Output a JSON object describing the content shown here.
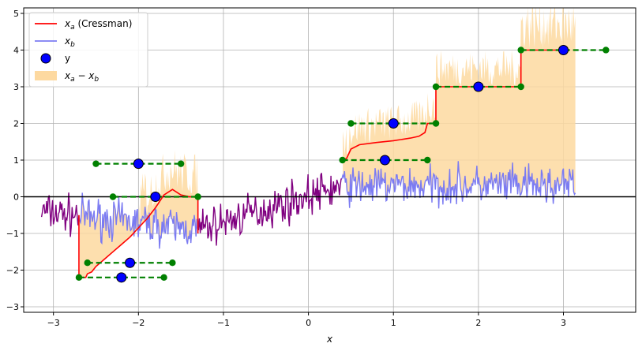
{
  "chart_data": {
    "type": "line",
    "title": "",
    "xlabel": "x",
    "ylabel": "",
    "xlim": [
      -3.35,
      3.85
    ],
    "ylim": [
      -3.15,
      5.15
    ],
    "xticks": [
      -3,
      -2,
      -1,
      0,
      1,
      2,
      3
    ],
    "yticks": [
      -3,
      -2,
      -1,
      0,
      1,
      2,
      3,
      4,
      5
    ],
    "xtick_labels": [
      "−3",
      "−2",
      "−1",
      "0",
      "1",
      "2",
      "3"
    ],
    "ytick_labels": [
      "−3",
      "−2",
      "−1",
      "0",
      "1",
      "2",
      "3",
      "4",
      "5"
    ],
    "grid": true,
    "legend_position": "top-left",
    "legend": [
      {
        "label_main": "x",
        "label_sub": "a",
        "label_suffix": " (Cressman)",
        "kind": "line",
        "color": "#ff0000"
      },
      {
        "label_main": "x",
        "label_sub": "b",
        "label_suffix": "",
        "kind": "line",
        "color": "#7b7bf2"
      },
      {
        "label_main": "y",
        "label_sub": "",
        "label_suffix": "",
        "kind": "marker",
        "color": "#0000ff"
      },
      {
        "label_main": "x",
        "label_sub": "a",
        "label_suffix": " − x",
        "label_sub2": "b",
        "kind": "patch",
        "color": "#fdd9a0"
      }
    ],
    "observations_y": [
      {
        "x": -2.2,
        "y": -2.2
      },
      {
        "x": -2.1,
        "y": -1.8
      },
      {
        "x": -2.0,
        "y": 0.9
      },
      {
        "x": -1.8,
        "y": 0.0
      },
      {
        "x": 0.9,
        "y": 1.0
      },
      {
        "x": 1.0,
        "y": 2.0
      },
      {
        "x": 2.0,
        "y": 3.0
      },
      {
        "x": 3.0,
        "y": 4.0
      }
    ],
    "influence_segments": [
      {
        "x0": -2.7,
        "x1": -1.7,
        "y": -2.2
      },
      {
        "x0": -2.6,
        "x1": -1.6,
        "y": -1.8
      },
      {
        "x0": -2.5,
        "x1": -1.5,
        "y": 0.9
      },
      {
        "x0": -2.3,
        "x1": -1.3,
        "y": 0.0
      },
      {
        "x0": 0.4,
        "x1": 1.4,
        "y": 1.0
      },
      {
        "x0": 0.5,
        "x1": 1.5,
        "y": 2.0
      },
      {
        "x0": 1.5,
        "x1": 2.5,
        "y": 3.0
      },
      {
        "x0": 2.5,
        "x1": 3.5,
        "y": 4.0
      }
    ],
    "analysis_xa": [
      {
        "x": -2.7,
        "y": -2.2
      },
      {
        "x": -2.62,
        "y": -2.2
      },
      {
        "x": -2.6,
        "y": -2.1
      },
      {
        "x": -2.55,
        "y": -2.05
      },
      {
        "x": -2.5,
        "y": -1.9
      },
      {
        "x": -2.4,
        "y": -1.7
      },
      {
        "x": -2.3,
        "y": -1.5
      },
      {
        "x": -2.2,
        "y": -1.3
      },
      {
        "x": -2.1,
        "y": -1.1
      },
      {
        "x": -2.0,
        "y": -0.85
      },
      {
        "x": -1.9,
        "y": -0.6
      },
      {
        "x": -1.8,
        "y": -0.3
      },
      {
        "x": -1.7,
        "y": 0.05
      },
      {
        "x": -1.6,
        "y": 0.2
      },
      {
        "x": -1.5,
        "y": 0.05
      },
      {
        "x": -1.4,
        "y": 0.0
      },
      {
        "x": -1.3,
        "y": 0.0
      },
      {
        "x": 0.4,
        "y": 1.0
      },
      {
        "x": 0.45,
        "y": 1.05
      },
      {
        "x": 0.5,
        "y": 1.3
      },
      {
        "x": 0.6,
        "y": 1.42
      },
      {
        "x": 0.8,
        "y": 1.48
      },
      {
        "x": 1.0,
        "y": 1.53
      },
      {
        "x": 1.2,
        "y": 1.6
      },
      {
        "x": 1.3,
        "y": 1.65
      },
      {
        "x": 1.37,
        "y": 1.75
      },
      {
        "x": 1.4,
        "y": 2.0
      },
      {
        "x": 1.5,
        "y": 2.0
      },
      {
        "x": 1.5,
        "y": 3.0
      },
      {
        "x": 2.5,
        "y": 3.0
      },
      {
        "x": 2.5,
        "y": 4.0
      },
      {
        "x": 3.0,
        "y": 4.0
      }
    ],
    "background_xb": {
      "x_start": -3.14,
      "x_end": 3.14,
      "n_points": 630,
      "trend": [
        {
          "x": -3.14,
          "y": -0.4
        },
        {
          "x": -1.3,
          "y": -0.9
        },
        {
          "x": 0.4,
          "y": 0.3
        },
        {
          "x": 3.14,
          "y": 0.3
        }
      ],
      "noise_amplitude": 0.45
    },
    "increment_spikes": [
      {
        "x0": -2.0,
        "x1": -1.3,
        "amp": 1.2
      },
      {
        "x0": 0.4,
        "x1": 3.14,
        "amp": 1.0
      },
      {
        "x0": 2.5,
        "x1": 3.14,
        "amp": 1.4
      }
    ],
    "colors": {
      "xa": "#ff0000",
      "xb": "#7b7bf2",
      "xb_overlap": "#800080",
      "y_marker": "#0000ff",
      "y_edge": "#000000",
      "segments": "#008000",
      "fill": "#fdd9a0",
      "zero_line": "#000000",
      "grid": "#b0b0b0"
    }
  }
}
